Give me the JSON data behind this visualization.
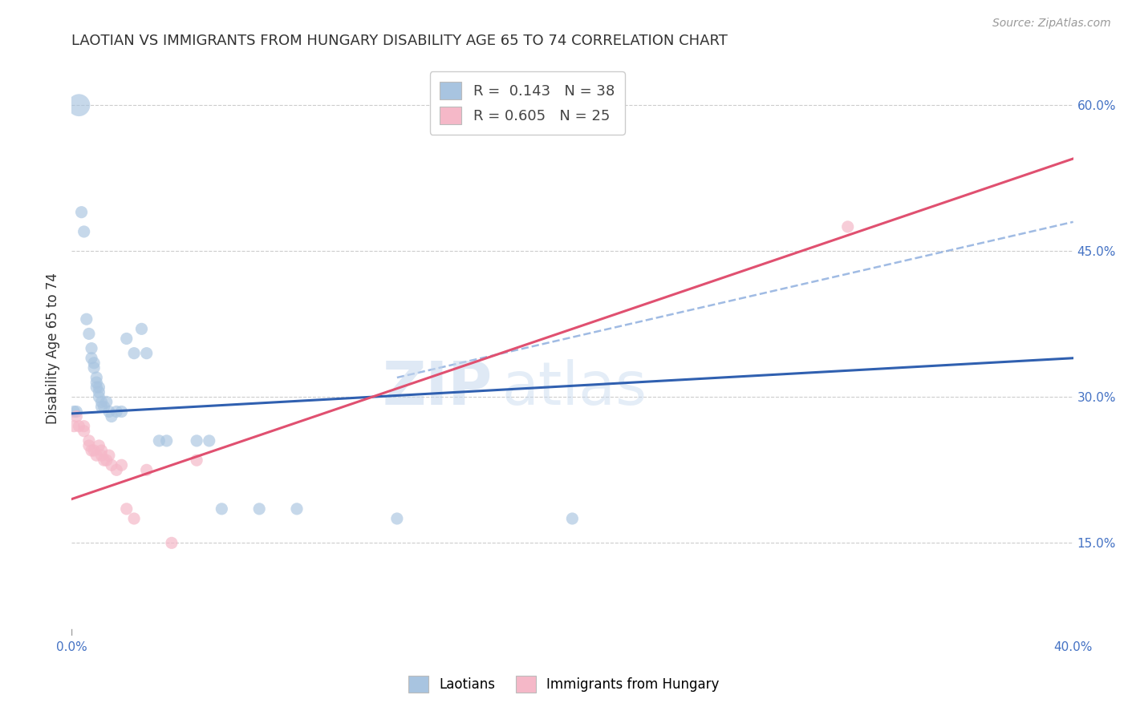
{
  "title": "LAOTIAN VS IMMIGRANTS FROM HUNGARY DISABILITY AGE 65 TO 74 CORRELATION CHART",
  "source": "Source: ZipAtlas.com",
  "ylabel": "Disability Age 65 to 74",
  "xlim": [
    0.0,
    0.4
  ],
  "ylim": [
    0.055,
    0.645
  ],
  "background_color": "#ffffff",
  "grid_color": "#cccccc",
  "watermark_text": "ZIPatlas",
  "legend_R1": "0.143",
  "legend_N1": "38",
  "legend_R2": "0.605",
  "legend_N2": "25",
  "blue_color": "#a8c4e0",
  "pink_color": "#f5b8c8",
  "blue_line_color": "#3060b0",
  "pink_line_color": "#e05070",
  "dashed_line_color": "#88aadd",
  "blue_line": {
    "x0": 0.0,
    "y0": 0.283,
    "x1": 0.4,
    "y1": 0.34
  },
  "pink_line": {
    "x0": 0.0,
    "y0": 0.195,
    "x1": 0.4,
    "y1": 0.545
  },
  "dashed_line": {
    "x0": 0.13,
    "y0": 0.32,
    "x1": 0.4,
    "y1": 0.48
  },
  "blue_scatter": [
    [
      0.001,
      0.285
    ],
    [
      0.002,
      0.285
    ],
    [
      0.003,
      0.6
    ],
    [
      0.004,
      0.49
    ],
    [
      0.005,
      0.47
    ],
    [
      0.006,
      0.38
    ],
    [
      0.007,
      0.365
    ],
    [
      0.008,
      0.35
    ],
    [
      0.008,
      0.34
    ],
    [
      0.009,
      0.335
    ],
    [
      0.009,
      0.33
    ],
    [
      0.01,
      0.32
    ],
    [
      0.01,
      0.315
    ],
    [
      0.01,
      0.31
    ],
    [
      0.011,
      0.31
    ],
    [
      0.011,
      0.305
    ],
    [
      0.011,
      0.3
    ],
    [
      0.012,
      0.295
    ],
    [
      0.012,
      0.29
    ],
    [
      0.013,
      0.29
    ],
    [
      0.014,
      0.295
    ],
    [
      0.015,
      0.285
    ],
    [
      0.016,
      0.28
    ],
    [
      0.018,
      0.285
    ],
    [
      0.02,
      0.285
    ],
    [
      0.022,
      0.36
    ],
    [
      0.025,
      0.345
    ],
    [
      0.028,
      0.37
    ],
    [
      0.03,
      0.345
    ],
    [
      0.035,
      0.255
    ],
    [
      0.038,
      0.255
    ],
    [
      0.05,
      0.255
    ],
    [
      0.055,
      0.255
    ],
    [
      0.06,
      0.185
    ],
    [
      0.075,
      0.185
    ],
    [
      0.09,
      0.185
    ],
    [
      0.13,
      0.175
    ],
    [
      0.2,
      0.175
    ]
  ],
  "pink_scatter": [
    [
      0.001,
      0.27
    ],
    [
      0.002,
      0.28
    ],
    [
      0.003,
      0.27
    ],
    [
      0.005,
      0.27
    ],
    [
      0.005,
      0.265
    ],
    [
      0.007,
      0.255
    ],
    [
      0.007,
      0.25
    ],
    [
      0.008,
      0.245
    ],
    [
      0.009,
      0.245
    ],
    [
      0.01,
      0.24
    ],
    [
      0.011,
      0.25
    ],
    [
      0.012,
      0.245
    ],
    [
      0.012,
      0.24
    ],
    [
      0.013,
      0.235
    ],
    [
      0.014,
      0.235
    ],
    [
      0.015,
      0.24
    ],
    [
      0.016,
      0.23
    ],
    [
      0.018,
      0.225
    ],
    [
      0.02,
      0.23
    ],
    [
      0.022,
      0.185
    ],
    [
      0.025,
      0.175
    ],
    [
      0.03,
      0.225
    ],
    [
      0.04,
      0.15
    ],
    [
      0.05,
      0.235
    ],
    [
      0.31,
      0.475
    ]
  ],
  "blue_sizes_uniform": 120,
  "blue_large_size": 400,
  "blue_large_idx": 2,
  "pink_sizes_uniform": 120
}
